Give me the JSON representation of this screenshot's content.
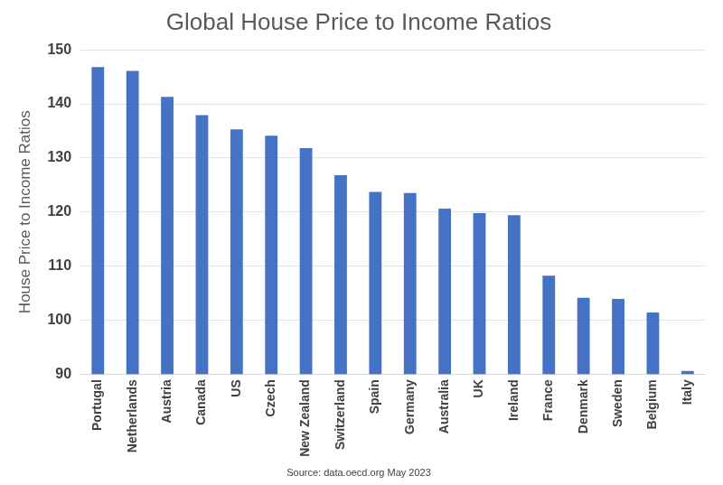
{
  "chart_data": {
    "type": "bar",
    "title": "Global House Price to Income Ratios",
    "y_label": "House Price to Income Ratios",
    "annotation": "Source: data.oecd.org May 2023",
    "categories": [
      "Portugal",
      "Netherlands",
      "Austria",
      "Canada",
      "US",
      "Czech",
      "New Zealand",
      "Switzerland",
      "Spain",
      "Germany",
      "Australia",
      "UK",
      "Ireland",
      "France",
      "Denmark",
      "Sweden",
      "Belgium",
      "Italy"
    ],
    "values": [
      146.8,
      146.1,
      141.3,
      137.9,
      135.3,
      134.1,
      131.8,
      126.8,
      123.7,
      123.5,
      120.6,
      119.8,
      119.4,
      108.2,
      104.1,
      103.9,
      101.4,
      90.6
    ],
    "color": "#4472c4",
    "ylim": [
      90,
      150
    ],
    "yticks": [
      90,
      100,
      110,
      120,
      130,
      140,
      150
    ],
    "grid": true
  }
}
